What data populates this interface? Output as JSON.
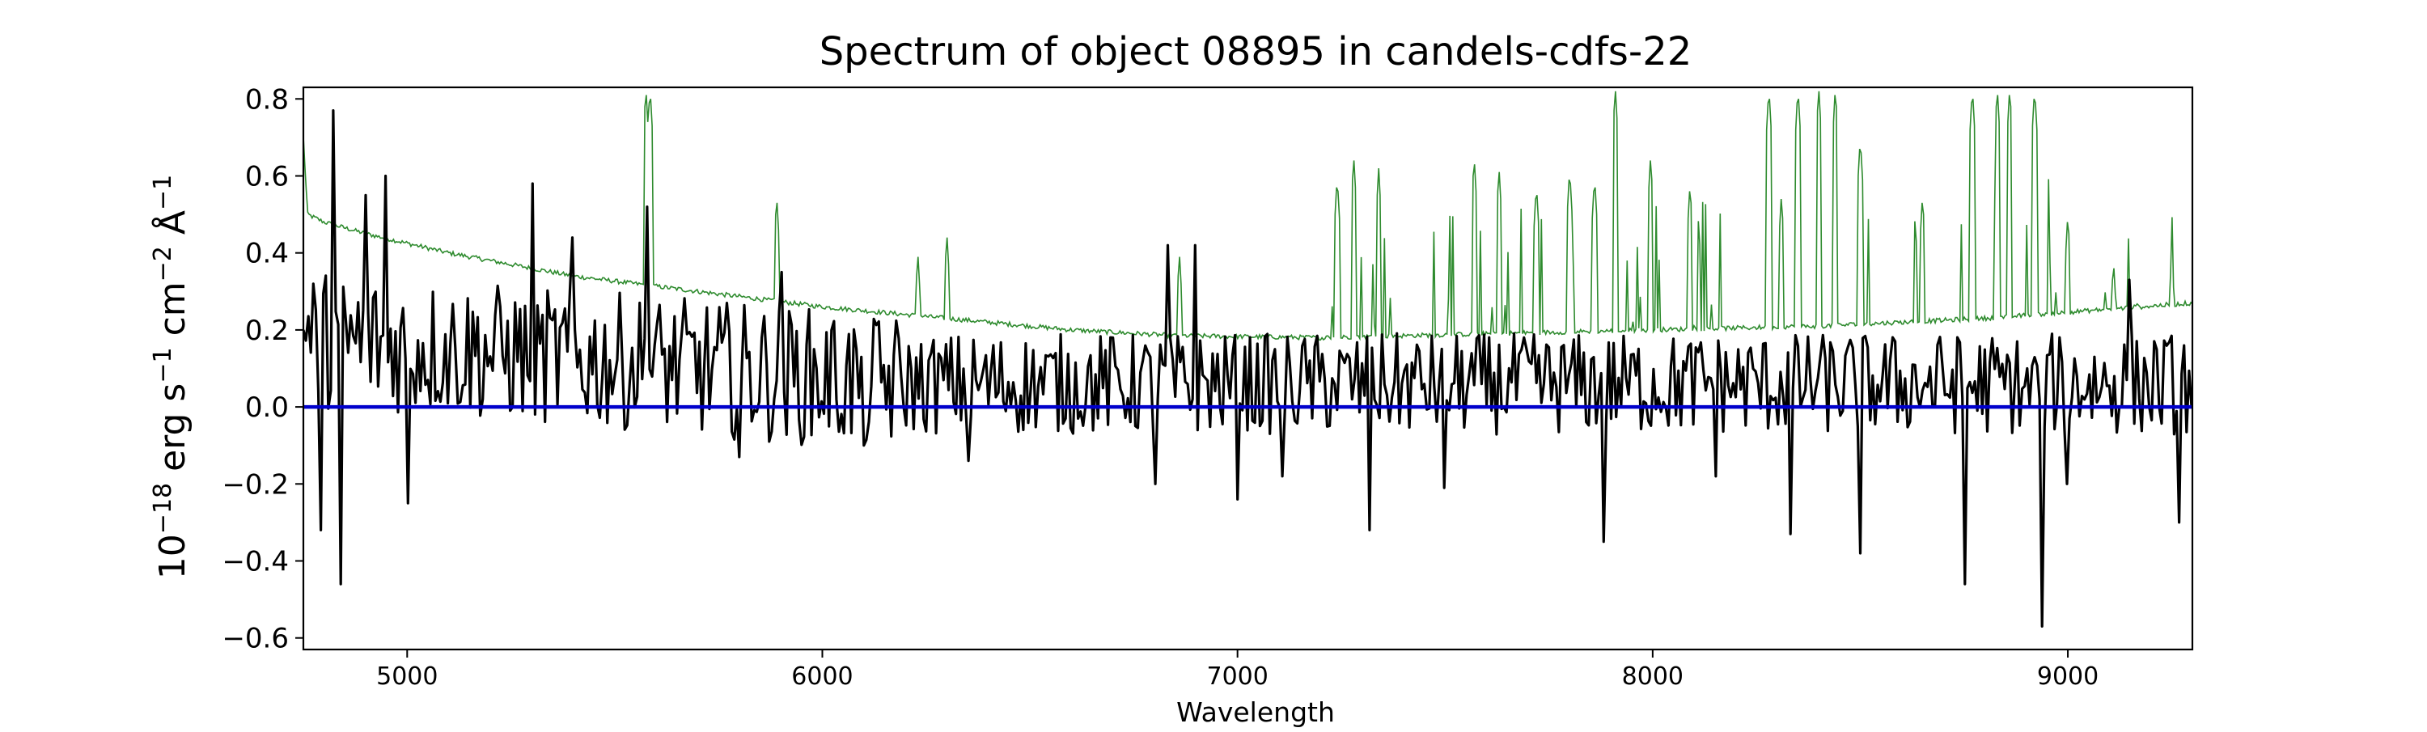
{
  "chart_data": {
    "type": "line",
    "title": "Spectrum of object 08895 in candels-cdfs-22",
    "xlabel": "Wavelength",
    "ylabel_base": "10",
    "ylabel_exp": "−18",
    "ylabel_units": [
      {
        "text": " erg s",
        "sup": "−1"
      },
      {
        "text": " cm",
        "sup": "−2"
      },
      {
        "text": " Å",
        "sup": "−1"
      }
    ],
    "xlim": [
      4750,
      9300
    ],
    "ylim": [
      -0.63,
      0.83
    ],
    "xticks": [
      5000,
      6000,
      7000,
      8000,
      9000
    ],
    "xtick_labels": [
      "5000",
      "6000",
      "7000",
      "8000",
      "9000"
    ],
    "yticks": [
      -0.6,
      -0.4,
      -0.2,
      0.0,
      0.2,
      0.4,
      0.6,
      0.8
    ],
    "ytick_labels": [
      "−0.6",
      "−0.4",
      "−0.2",
      "0.0",
      "0.2",
      "0.4",
      "0.6",
      "0.8"
    ],
    "grid": false,
    "legend": "none",
    "series": [
      {
        "key": "error",
        "color": "#2e8b2e",
        "continuum": [
          [
            4750,
            0.7
          ],
          [
            4760,
            0.5
          ],
          [
            4800,
            0.48
          ],
          [
            4900,
            0.45
          ],
          [
            5100,
            0.4
          ],
          [
            5400,
            0.34
          ],
          [
            5700,
            0.3
          ],
          [
            6000,
            0.26
          ],
          [
            6300,
            0.23
          ],
          [
            6600,
            0.2
          ],
          [
            6850,
            0.185
          ],
          [
            7200,
            0.18
          ],
          [
            7600,
            0.19
          ],
          [
            8000,
            0.2
          ],
          [
            8400,
            0.21
          ],
          [
            8800,
            0.23
          ],
          [
            9300,
            0.27
          ]
        ],
        "spikes": [
          [
            5575,
            0.83
          ],
          [
            5585,
            0.83
          ],
          [
            5890,
            0.55
          ],
          [
            6230,
            0.4
          ],
          [
            6300,
            0.45
          ],
          [
            6860,
            0.4
          ],
          [
            7240,
            0.6
          ],
          [
            7280,
            0.65
          ],
          [
            7340,
            0.62
          ],
          [
            7570,
            0.65
          ],
          [
            7630,
            0.62
          ],
          [
            7720,
            0.58
          ],
          [
            7800,
            0.62
          ],
          [
            7860,
            0.6
          ],
          [
            7910,
            0.83
          ],
          [
            7995,
            0.65
          ],
          [
            8090,
            0.58
          ],
          [
            8280,
            0.83
          ],
          [
            8310,
            0.55
          ],
          [
            8350,
            0.83
          ],
          [
            8400,
            0.83
          ],
          [
            8440,
            0.83
          ],
          [
            8500,
            0.7
          ],
          [
            8650,
            0.55
          ],
          [
            8770,
            0.83
          ],
          [
            8830,
            0.83
          ],
          [
            8860,
            0.83
          ],
          [
            8920,
            0.83
          ],
          [
            9000,
            0.5
          ],
          [
            9110,
            0.38
          ],
          [
            9250,
            0.4
          ]
        ]
      },
      {
        "key": "flux",
        "color": "#000000",
        "anchors": [
          [
            4750,
            0.2
          ],
          [
            4790,
            -0.32
          ],
          [
            4820,
            0.77
          ],
          [
            4840,
            -0.46
          ],
          [
            4900,
            0.55
          ],
          [
            4950,
            0.6
          ],
          [
            5000,
            -0.25
          ],
          [
            5300,
            0.58
          ],
          [
            5400,
            0.44
          ],
          [
            5580,
            0.52
          ],
          [
            5800,
            -0.13
          ],
          [
            5900,
            0.35
          ],
          [
            6100,
            -0.1
          ],
          [
            6350,
            -0.14
          ],
          [
            6800,
            -0.2
          ],
          [
            6830,
            0.42
          ],
          [
            6900,
            0.42
          ],
          [
            7000,
            -0.24
          ],
          [
            7110,
            -0.18
          ],
          [
            7320,
            -0.32
          ],
          [
            7500,
            -0.21
          ],
          [
            7880,
            -0.35
          ],
          [
            8150,
            -0.18
          ],
          [
            8330,
            -0.33
          ],
          [
            8500,
            -0.38
          ],
          [
            8750,
            -0.46
          ],
          [
            8900,
            0.1
          ],
          [
            8940,
            -0.57
          ],
          [
            9000,
            -0.2
          ],
          [
            9150,
            0.33
          ],
          [
            9270,
            -0.3
          ],
          [
            9300,
            0.0
          ]
        ],
        "noise_amplitude": 0.12
      },
      {
        "key": "zero",
        "color": "#0000cc",
        "values": [
          [
            4750,
            0.0
          ],
          [
            9300,
            0.0
          ]
        ]
      }
    ]
  }
}
